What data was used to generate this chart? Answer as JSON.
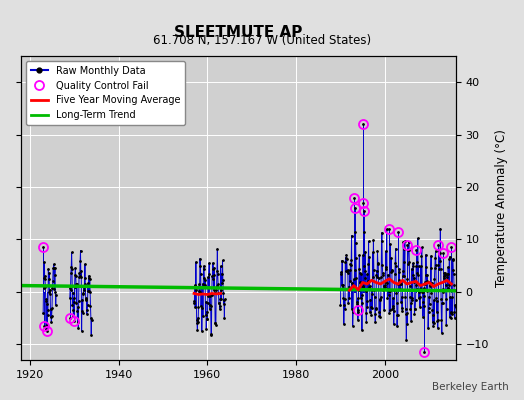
{
  "title": "SLEETMUTE AP",
  "subtitle": "61.708 N, 157.167 W (United States)",
  "ylabel": "Temperature Anomaly (°C)",
  "credit": "Berkeley Earth",
  "background_color": "#e0e0e0",
  "plot_bg_color": "#d0d0d0",
  "ylim": [
    -13,
    45
  ],
  "xlim": [
    1918,
    2016
  ],
  "yticks": [
    -10,
    0,
    10,
    20,
    30,
    40
  ],
  "xticks": [
    1920,
    1940,
    1960,
    1980,
    2000
  ],
  "grid_color": "#ffffff",
  "raw_color": "#0000cc",
  "qc_color": "#ff00ff",
  "ma_color": "#ff0000",
  "trend_color": "#00bb00",
  "trend_x": [
    1918,
    2016
  ],
  "trend_y": [
    1.2,
    0.2
  ],
  "clusters": [
    {
      "start": 1923,
      "end": 1926
    },
    {
      "start": 1929,
      "end": 1934
    },
    {
      "start": 1957,
      "end": 1964
    },
    {
      "start": 1990,
      "end": 2016
    }
  ]
}
